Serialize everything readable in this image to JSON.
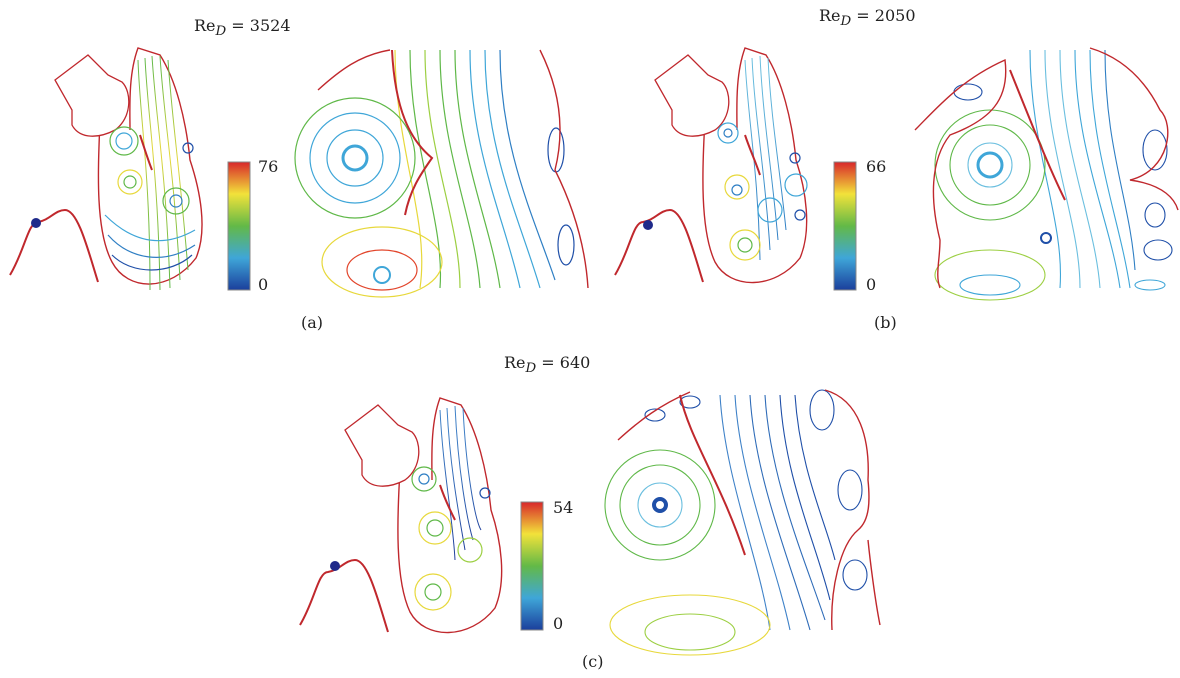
{
  "panels": [
    {
      "id": "a",
      "re_prefix": "Re",
      "re_sub": "D",
      "re_value": "= 3524",
      "cbar_max": "76",
      "cbar_min": "0",
      "caption": "(a)"
    },
    {
      "id": "b",
      "re_prefix": "Re",
      "re_sub": "D",
      "re_value": "= 2050",
      "cbar_max": "66",
      "cbar_min": "0",
      "caption": "(b)"
    },
    {
      "id": "c",
      "re_prefix": "Re",
      "re_sub": "D",
      "re_value": "= 640",
      "cbar_max": "54",
      "cbar_min": "0",
      "caption": "(c)"
    }
  ],
  "colors": {
    "boundary": "#c0282d",
    "marker": "#1f2a8a",
    "low": "#1f4fa8",
    "mid": "#5fb848",
    "high": "#e0312a"
  }
}
